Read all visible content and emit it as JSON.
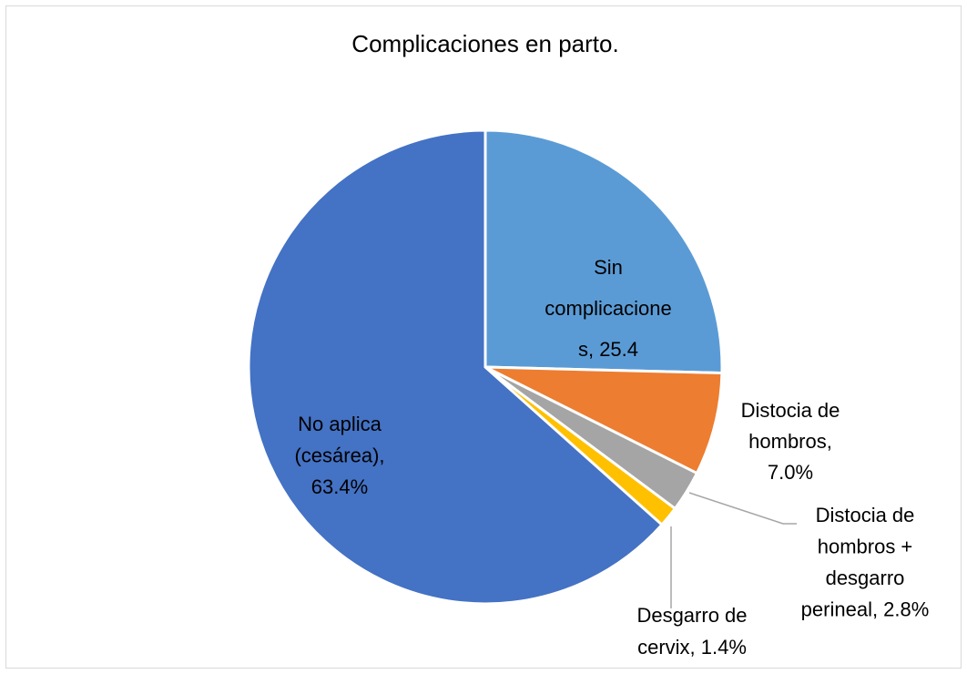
{
  "chart_data": {
    "type": "pie",
    "title": "Complicaciones en parto.",
    "values": [
      25.4,
      7.0,
      2.8,
      1.4,
      63.4
    ],
    "labels": [
      [
        "Sin",
        "complicacione",
        "s, 25.4"
      ],
      [
        "Distocia de",
        "hombros,",
        "7.0%"
      ],
      [
        "Distocia de",
        "hombros +",
        "desgarro",
        "perineal, 2.8%"
      ],
      [
        "Desgarro de",
        "cervix, 1.4%"
      ],
      [
        "No aplica",
        "(cesárea),",
        "63.4%"
      ]
    ],
    "colors": [
      "#5b9bd5",
      "#ed7d31",
      "#a5a5a5",
      "#ffc000",
      "#4472c4"
    ]
  }
}
